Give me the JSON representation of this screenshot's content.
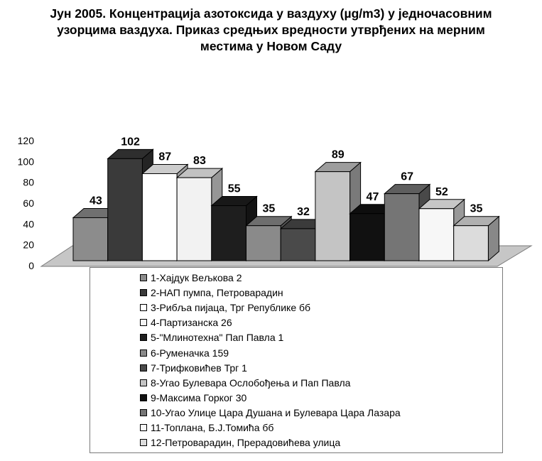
{
  "title_lines": [
    "Јун 2005. Концентрација азотоксида у ваздуху (µg/m3) у једночасовним",
    "узорцима ваздуха. Приказ средњих вредности утврђених на мерним",
    "местима у Новом Саду"
  ],
  "chart_data": {
    "type": "bar",
    "title": "Јун 2005. Концентрација азотоксида у ваздуху (µg/m3) у једночасовним узорцима ваздуха. Приказ средњих вредности утврђених на мерним местима у Новом Саду",
    "xlabel": "",
    "ylabel": "",
    "ylim": [
      0,
      120
    ],
    "yticks": [
      0,
      20,
      40,
      60,
      80,
      100,
      120
    ],
    "grid": false,
    "legend_position": "bottom",
    "style": "3d",
    "series": [
      {
        "name": "1-Хајдук Вељкова 2",
        "value": 43,
        "color": "#8c8c8c"
      },
      {
        "name": "2-НАП пумпа, Петроварадин",
        "value": 102,
        "color": "#3a3a3a"
      },
      {
        "name": "3-Рибља пијаца, Трг Републике бб",
        "value": 87,
        "color": "#ffffff"
      },
      {
        "name": "4-Партизанска 26",
        "value": 83,
        "color": "#f2f2f2"
      },
      {
        "name": "5-\"Млинотехна\" Пап Павла 1",
        "value": 55,
        "color": "#1e1e1e"
      },
      {
        "name": "6-Руменачка 159",
        "value": 35,
        "color": "#8a8a8a"
      },
      {
        "name": "7-Трифковићев Трг 1",
        "value": 32,
        "color": "#4a4a4a"
      },
      {
        "name": "8-Угао Булевара Ослобођења и Пап Павла",
        "value": 89,
        "color": "#c4c4c4"
      },
      {
        "name": "9-Максима Горког 30",
        "value": 47,
        "color": "#111111"
      },
      {
        "name": "10-Угао Улице Цара Душана и Булевара Цара Лазара",
        "value": 67,
        "color": "#757575"
      },
      {
        "name": "11-Топлана, Б.Ј.Томића бб",
        "value": 52,
        "color": "#f7f7f7"
      },
      {
        "name": "12-Петроварадин, Прерадовићева улица",
        "value": 35,
        "color": "#dcdcdc"
      }
    ]
  }
}
